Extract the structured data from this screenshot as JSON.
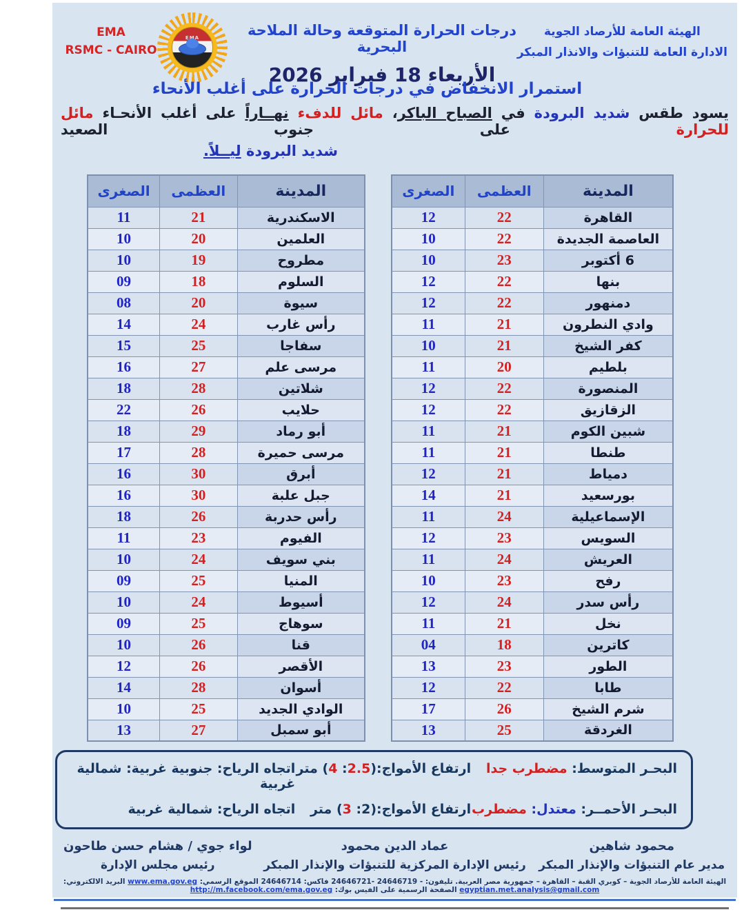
{
  "header": {
    "agency_abbr": "EMA",
    "agency_center": "RSMC - CAIRO",
    "org_line1": "الهيئة العامة للأرصاد الجوية",
    "org_line2": "الادارة العامة للتنبؤات والانذار المبكر",
    "title": "درجات الحرارة المتوقعة وحالة الملاحة البحرية",
    "date": "الأربعاء 18 فبراير 2026",
    "logo_icon": "sun-flag-cloud-logo",
    "logo_mini_text": "EMA"
  },
  "subtitle": "استمرار الانخفاض في درجات الحرارة على أغلب الأنحاء",
  "forecast": {
    "seg1": "يسود طقس ",
    "seg2": "شديد البرودة",
    "seg3": " في ",
    "seg4": "الصباح الباكر",
    "seg5": "، ",
    "seg6": "مائل للدفء ",
    "seg7": "نهــاراً",
    "seg8": " على أغلب الأنحـاء ",
    "seg9": "مائل للحرارة",
    "seg10": " على جنوب الصعيد",
    "line2_a": "شديد البرودة ",
    "line2_b": "ليــلاً."
  },
  "tables": {
    "headers": {
      "city": "المدينة",
      "max": "العظمى",
      "min": "الصغرى"
    },
    "right": [
      {
        "city": "القاهرة",
        "max": "22",
        "min": "12"
      },
      {
        "city": "العاصمة الجديدة",
        "max": "22",
        "min": "10"
      },
      {
        "city": "6 أكتوبر",
        "max": "23",
        "min": "10"
      },
      {
        "city": "بنها",
        "max": "22",
        "min": "12"
      },
      {
        "city": "دمنهور",
        "max": "22",
        "min": "12"
      },
      {
        "city": "وادي النطرون",
        "max": "21",
        "min": "11"
      },
      {
        "city": "كفر الشيخ",
        "max": "21",
        "min": "10"
      },
      {
        "city": "بلطيم",
        "max": "20",
        "min": "11"
      },
      {
        "city": "المنصورة",
        "max": "22",
        "min": "12"
      },
      {
        "city": "الزقازيق",
        "max": "22",
        "min": "12"
      },
      {
        "city": "شبين الكوم",
        "max": "21",
        "min": "11"
      },
      {
        "city": "طنطا",
        "max": "21",
        "min": "11"
      },
      {
        "city": "دمياط",
        "max": "21",
        "min": "12"
      },
      {
        "city": "بورسعيد",
        "max": "21",
        "min": "14"
      },
      {
        "city": "الإسماعيلية",
        "max": "24",
        "min": "11"
      },
      {
        "city": "السويس",
        "max": "23",
        "min": "12"
      },
      {
        "city": "العريش",
        "max": "24",
        "min": "11"
      },
      {
        "city": "رفح",
        "max": "23",
        "min": "10"
      },
      {
        "city": "رأس سدر",
        "max": "24",
        "min": "12"
      },
      {
        "city": "نخل",
        "max": "21",
        "min": "11"
      },
      {
        "city": "كاترين",
        "max": "18",
        "min": "04"
      },
      {
        "city": "الطور",
        "max": "23",
        "min": "13"
      },
      {
        "city": "طابا",
        "max": "22",
        "min": "12"
      },
      {
        "city": "شرم الشيخ",
        "max": "26",
        "min": "17"
      },
      {
        "city": "الغردقة",
        "max": "25",
        "min": "13"
      }
    ],
    "left": [
      {
        "city": "الاسكندرية",
        "max": "21",
        "min": "11"
      },
      {
        "city": "العلمين",
        "max": "20",
        "min": "10"
      },
      {
        "city": "مطروح",
        "max": "19",
        "min": "10"
      },
      {
        "city": "السلوم",
        "max": "18",
        "min": "09"
      },
      {
        "city": "سيوة",
        "max": "20",
        "min": "08"
      },
      {
        "city": "رأس غارب",
        "max": "24",
        "min": "14"
      },
      {
        "city": "سفاجا",
        "max": "25",
        "min": "15"
      },
      {
        "city": "مرسى علم",
        "max": "27",
        "min": "16"
      },
      {
        "city": "شلاتين",
        "max": "28",
        "min": "18"
      },
      {
        "city": "حلايب",
        "max": "26",
        "min": "22"
      },
      {
        "city": "أبو رماد",
        "max": "29",
        "min": "18"
      },
      {
        "city": "مرسى حميرة",
        "max": "28",
        "min": "17"
      },
      {
        "city": "أبرق",
        "max": "30",
        "min": "16"
      },
      {
        "city": "جبل علبة",
        "max": "30",
        "min": "16"
      },
      {
        "city": "رأس حدربة",
        "max": "26",
        "min": "18"
      },
      {
        "city": "الفيوم",
        "max": "23",
        "min": "11"
      },
      {
        "city": "بني سويف",
        "max": "24",
        "min": "10"
      },
      {
        "city": "المنيا",
        "max": "25",
        "min": "09"
      },
      {
        "city": "أسيوط",
        "max": "24",
        "min": "10"
      },
      {
        "city": "سوهاج",
        "max": "25",
        "min": "09"
      },
      {
        "city": "قنا",
        "max": "26",
        "min": "10"
      },
      {
        "city": "الأقصر",
        "max": "26",
        "min": "12"
      },
      {
        "city": "أسوان",
        "max": "28",
        "min": "14"
      },
      {
        "city": "الوادي الجديد",
        "max": "25",
        "min": "10"
      },
      {
        "city": "أبو سمبل",
        "max": "27",
        "min": "13"
      }
    ]
  },
  "marine": {
    "row1": {
      "sea_label": "البحـر المتوسط:",
      "state_red": "مضطرب جدا",
      "waves_label": "ارتفاع الأمواج:",
      "waves_open": "(",
      "waves_v1": "2.5",
      "waves_sep": ": ",
      "waves_v2": "4",
      "waves_close": ") متر",
      "wind": "اتجاه الرياح: جنوبية غربية: شمالية غربية"
    },
    "row2": {
      "sea_label": "البحـر الأحمــر:",
      "state_blue": "معتدل:",
      "state_red": "مضطرب",
      "waves_label": "ارتفاع الأمواج:",
      "waves_open": "(",
      "waves_v1": "2",
      "waves_sep": ": ",
      "waves_v2": "3",
      "waves_close": ") متر",
      "wind": "اتجاه الرياح: شمالية غربية"
    }
  },
  "signatures": {
    "right": {
      "name": "محمود شاهين",
      "title": "مدير عام التنبؤات والإنذار المبكر"
    },
    "center": {
      "name": "عماد الدين محمود",
      "title": "رئيس الإدارة المركزية للتنبؤات والإنذار المبكر"
    },
    "left": {
      "name": "لواء جوي / هشام حسن طاحون",
      "title": "رئيس مجلس الإدارة"
    }
  },
  "contact": {
    "part1": "الهيئة العامة للأرصاد الجوية – كوبري القبة – القاهرة – جمهورية مصر العربية. تليفون: - 24646719 -24646721 فاكس: 24646714 الموقع الرسمي: ",
    "link1": "www.ema.gov.eg",
    "part2": " البريد الالكتروني: ",
    "link2": "egyptian.met.analysis@gmail.com",
    "part3": " الصفحة الرسمية على الفيس بوك: ",
    "link3": "http://m.facebook.com/ema.gov.eg"
  },
  "colors": {
    "page_bg": "#d8e4f0",
    "accent_blue": "#2243cb",
    "date_navy": "#1e2468",
    "max_red": "#d32020",
    "min_blue": "#2024c0",
    "marine_navy": "#17365d",
    "table_header_row": "#a9bbd5",
    "row_dark": "#c9d5e8",
    "row_light": "#dce5f1"
  }
}
